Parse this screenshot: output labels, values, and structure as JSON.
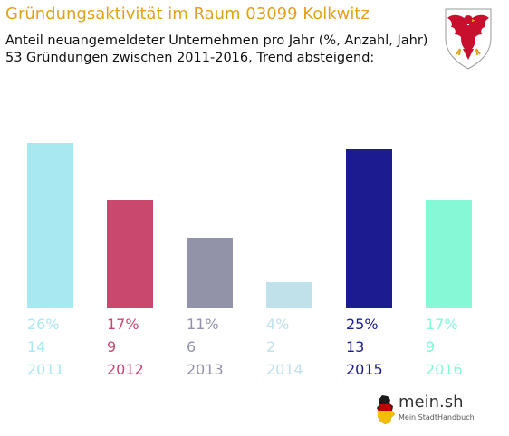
{
  "header": {
    "title": "Gründungsaktivität im Raum 03099 Kolkwitz",
    "subtitle_line1": "Anteil neuangemeldeter Unternehmen pro Jahr (%, Anzahl, Jahr)",
    "subtitle_line2": "53 Gründungen zwischen 2011-2016, Trend absteigend:"
  },
  "crest": {
    "icon": "eagle-crest-icon",
    "colors": {
      "eagle": "#c8102e",
      "claws": "#e0a21a"
    }
  },
  "brand": {
    "name": "mein.sh",
    "tagline": "Mein StadtHandbuch",
    "icon": "germany-map-icon"
  },
  "chart_data": {
    "type": "bar",
    "categories": [
      "2011",
      "2012",
      "2013",
      "2014",
      "2015",
      "2016"
    ],
    "values": [
      26,
      17,
      11,
      4,
      25,
      17
    ],
    "counts": [
      14,
      9,
      6,
      2,
      13,
      9
    ],
    "percent_labels": [
      "26%",
      "17%",
      "11%",
      "4%",
      "25%",
      "17%"
    ],
    "colors": [
      "#a8e8f0",
      "#c8486e",
      "#9292a8",
      "#c0e0ea",
      "#1c1c90",
      "#86f8d6"
    ],
    "title": "",
    "xlabel": "",
    "ylabel": "",
    "ylim": [
      0,
      26
    ],
    "grid": false,
    "legend": "none"
  }
}
